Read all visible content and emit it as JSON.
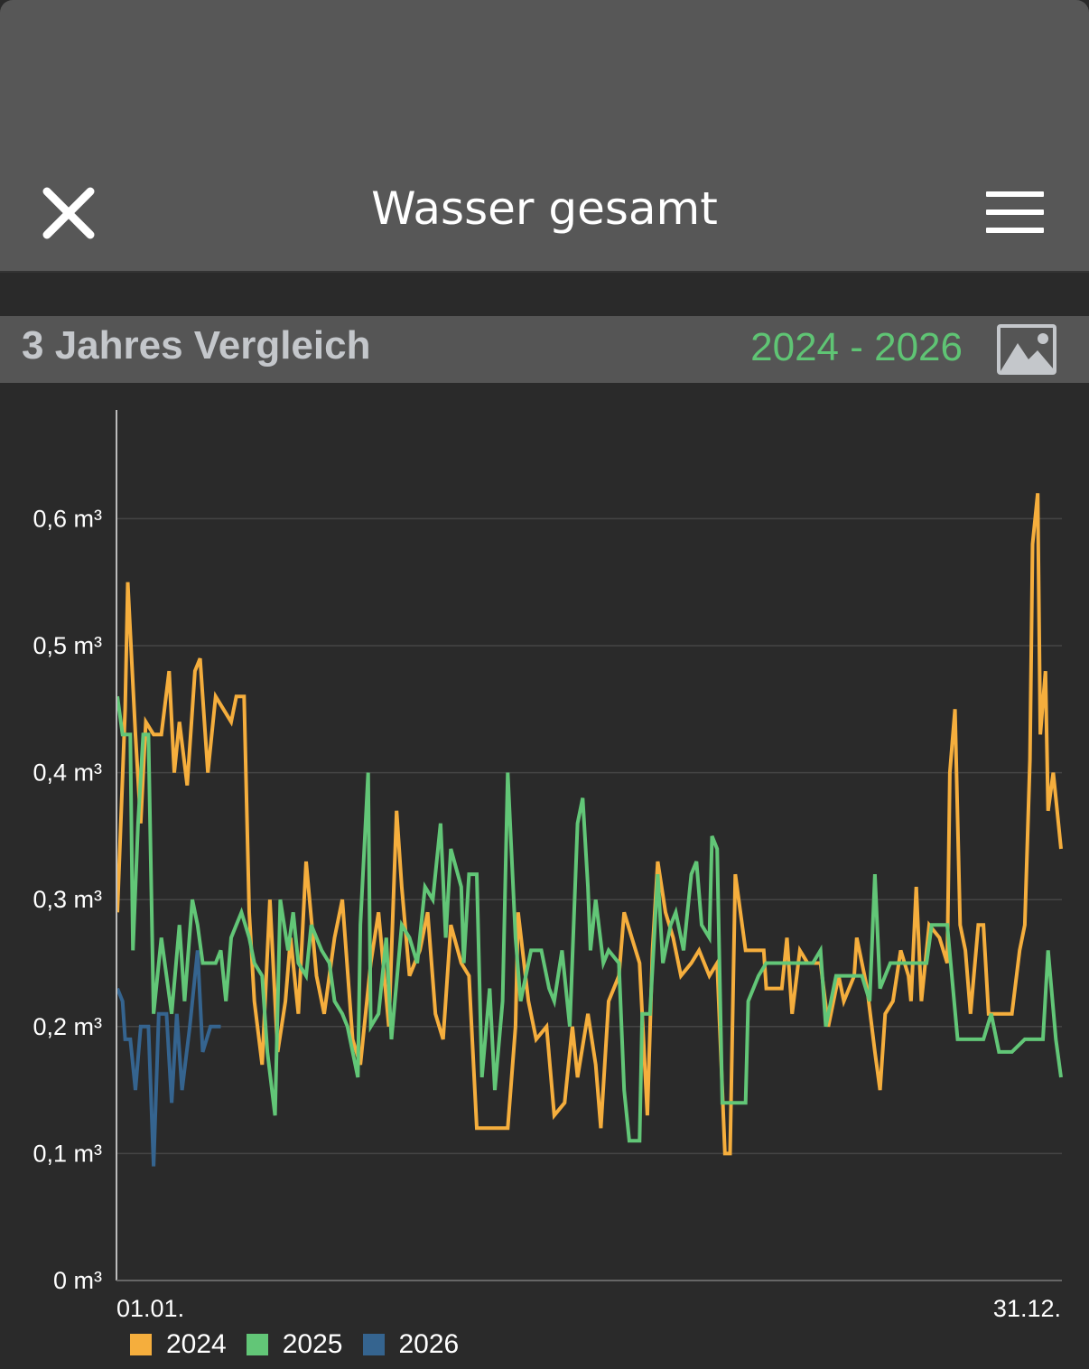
{
  "header": {
    "title": "Wasser gesamt",
    "close_icon": "close-icon",
    "menu_icon": "hamburger-menu-icon"
  },
  "section": {
    "title": "3 Jahres Vergleich",
    "range": "2024 - 2026",
    "image_icon": "image-icon"
  },
  "chart_data": {
    "type": "line",
    "title": "3 Jahres Vergleich",
    "xlabel": "",
    "ylabel": "",
    "x_tick_labels": [
      "01.01.",
      "31.12."
    ],
    "xlim": [
      0,
      365
    ],
    "ylim": [
      0,
      0.686
    ],
    "y_ticks": [
      {
        "v": 0,
        "label": "0 m³"
      },
      {
        "v": 0.1,
        "label": "0,1 m³"
      },
      {
        "v": 0.2,
        "label": "0,2 m³"
      },
      {
        "v": 0.3,
        "label": "0,3 m³"
      },
      {
        "v": 0.4,
        "label": "0,4 m³"
      },
      {
        "v": 0.5,
        "label": "0,5 m³"
      },
      {
        "v": 0.6,
        "label": "0,6 m³"
      }
    ],
    "grid": true,
    "legend_position": "bottom-left",
    "series": [
      {
        "name": "2024",
        "color": "#f5ae3d",
        "points": [
          [
            0,
            0.29
          ],
          [
            3,
            0.45
          ],
          [
            4,
            0.55
          ],
          [
            7,
            0.43
          ],
          [
            9,
            0.36
          ],
          [
            11,
            0.44
          ],
          [
            14,
            0.43
          ],
          [
            17,
            0.43
          ],
          [
            20,
            0.48
          ],
          [
            22,
            0.4
          ],
          [
            24,
            0.44
          ],
          [
            27,
            0.39
          ],
          [
            30,
            0.48
          ],
          [
            32,
            0.49
          ],
          [
            35,
            0.4
          ],
          [
            38,
            0.46
          ],
          [
            41,
            0.45
          ],
          [
            44,
            0.44
          ],
          [
            46,
            0.46
          ],
          [
            49,
            0.46
          ],
          [
            51,
            0.29
          ],
          [
            53,
            0.22
          ],
          [
            56,
            0.17
          ],
          [
            59,
            0.3
          ],
          [
            62,
            0.18
          ],
          [
            65,
            0.22
          ],
          [
            67,
            0.27
          ],
          [
            70,
            0.21
          ],
          [
            73,
            0.33
          ],
          [
            77,
            0.24
          ],
          [
            80,
            0.21
          ],
          [
            84,
            0.27
          ],
          [
            87,
            0.3
          ],
          [
            91,
            0.19
          ],
          [
            94,
            0.17
          ],
          [
            98,
            0.25
          ],
          [
            101,
            0.29
          ],
          [
            105,
            0.2
          ],
          [
            108,
            0.37
          ],
          [
            110,
            0.31
          ],
          [
            113,
            0.24
          ],
          [
            117,
            0.26
          ],
          [
            120,
            0.29
          ],
          [
            123,
            0.21
          ],
          [
            126,
            0.19
          ],
          [
            129,
            0.28
          ],
          [
            133,
            0.25
          ],
          [
            136,
            0.24
          ],
          [
            139,
            0.12
          ],
          [
            145,
            0.12
          ],
          [
            151,
            0.12
          ],
          [
            154,
            0.2
          ],
          [
            155,
            0.29
          ],
          [
            159,
            0.22
          ],
          [
            162,
            0.19
          ],
          [
            166,
            0.2
          ],
          [
            169,
            0.13
          ],
          [
            173,
            0.14
          ],
          [
            176,
            0.2
          ],
          [
            178,
            0.16
          ],
          [
            182,
            0.21
          ],
          [
            185,
            0.17
          ],
          [
            187,
            0.12
          ],
          [
            190,
            0.22
          ],
          [
            194,
            0.24
          ],
          [
            196,
            0.29
          ],
          [
            199,
            0.27
          ],
          [
            202,
            0.25
          ],
          [
            205,
            0.13
          ],
          [
            207,
            0.26
          ],
          [
            209,
            0.33
          ],
          [
            212,
            0.29
          ],
          [
            215,
            0.27
          ],
          [
            218,
            0.24
          ],
          [
            222,
            0.25
          ],
          [
            225,
            0.26
          ],
          [
            229,
            0.24
          ],
          [
            232,
            0.25
          ],
          [
            235,
            0.1
          ],
          [
            237,
            0.1
          ],
          [
            239,
            0.32
          ],
          [
            241,
            0.29
          ],
          [
            243,
            0.26
          ],
          [
            250,
            0.26
          ],
          [
            251,
            0.23
          ],
          [
            257,
            0.23
          ],
          [
            259,
            0.27
          ],
          [
            261,
            0.21
          ],
          [
            264,
            0.26
          ],
          [
            267,
            0.25
          ],
          [
            272,
            0.25
          ],
          [
            275,
            0.2
          ],
          [
            279,
            0.24
          ],
          [
            281,
            0.22
          ],
          [
            285,
            0.24
          ],
          [
            286,
            0.27
          ],
          [
            290,
            0.23
          ],
          [
            293,
            0.18
          ],
          [
            295,
            0.15
          ],
          [
            297,
            0.21
          ],
          [
            300,
            0.22
          ],
          [
            303,
            0.26
          ],
          [
            306,
            0.24
          ],
          [
            307,
            0.22
          ],
          [
            309,
            0.31
          ],
          [
            311,
            0.22
          ],
          [
            314,
            0.28
          ],
          [
            318,
            0.27
          ],
          [
            321,
            0.25
          ],
          [
            322,
            0.4
          ],
          [
            324,
            0.45
          ],
          [
            326,
            0.28
          ],
          [
            328,
            0.26
          ],
          [
            330,
            0.21
          ],
          [
            333,
            0.28
          ],
          [
            335,
            0.28
          ],
          [
            337,
            0.21
          ],
          [
            342,
            0.21
          ],
          [
            346,
            0.21
          ],
          [
            349,
            0.26
          ],
          [
            351,
            0.28
          ],
          [
            353,
            0.41
          ],
          [
            354,
            0.58
          ],
          [
            356,
            0.62
          ],
          [
            357,
            0.43
          ],
          [
            359,
            0.48
          ],
          [
            360,
            0.37
          ],
          [
            362,
            0.4
          ],
          [
            363,
            0.38
          ],
          [
            365,
            0.34
          ]
        ]
      },
      {
        "name": "2025",
        "color": "#62c677",
        "points": [
          [
            0,
            0.46
          ],
          [
            2,
            0.43
          ],
          [
            5,
            0.43
          ],
          [
            6,
            0.26
          ],
          [
            8,
            0.36
          ],
          [
            10,
            0.43
          ],
          [
            12,
            0.43
          ],
          [
            14,
            0.21
          ],
          [
            17,
            0.27
          ],
          [
            19,
            0.24
          ],
          [
            21,
            0.21
          ],
          [
            24,
            0.28
          ],
          [
            26,
            0.22
          ],
          [
            29,
            0.3
          ],
          [
            31,
            0.28
          ],
          [
            33,
            0.25
          ],
          [
            36,
            0.25
          ],
          [
            38,
            0.25
          ],
          [
            40,
            0.26
          ],
          [
            42,
            0.22
          ],
          [
            44,
            0.27
          ],
          [
            46,
            0.28
          ],
          [
            48,
            0.29
          ],
          [
            51,
            0.27
          ],
          [
            53,
            0.25
          ],
          [
            56,
            0.24
          ],
          [
            58,
            0.18
          ],
          [
            61,
            0.13
          ],
          [
            63,
            0.3
          ],
          [
            66,
            0.26
          ],
          [
            68,
            0.29
          ],
          [
            70,
            0.25
          ],
          [
            73,
            0.24
          ],
          [
            75,
            0.28
          ],
          [
            79,
            0.26
          ],
          [
            82,
            0.25
          ],
          [
            84,
            0.22
          ],
          [
            87,
            0.21
          ],
          [
            89,
            0.2
          ],
          [
            93,
            0.16
          ],
          [
            94,
            0.28
          ],
          [
            97,
            0.4
          ],
          [
            98,
            0.2
          ],
          [
            101,
            0.21
          ],
          [
            104,
            0.27
          ],
          [
            106,
            0.19
          ],
          [
            110,
            0.28
          ],
          [
            113,
            0.27
          ],
          [
            116,
            0.25
          ],
          [
            119,
            0.31
          ],
          [
            122,
            0.3
          ],
          [
            125,
            0.36
          ],
          [
            127,
            0.27
          ],
          [
            129,
            0.34
          ],
          [
            133,
            0.31
          ],
          [
            134,
            0.25
          ],
          [
            136,
            0.32
          ],
          [
            139,
            0.32
          ],
          [
            141,
            0.16
          ],
          [
            144,
            0.23
          ],
          [
            146,
            0.15
          ],
          [
            149,
            0.22
          ],
          [
            151,
            0.4
          ],
          [
            154,
            0.27
          ],
          [
            156,
            0.22
          ],
          [
            160,
            0.26
          ],
          [
            164,
            0.26
          ],
          [
            167,
            0.23
          ],
          [
            169,
            0.22
          ],
          [
            172,
            0.26
          ],
          [
            175,
            0.2
          ],
          [
            178,
            0.36
          ],
          [
            180,
            0.38
          ],
          [
            182,
            0.31
          ],
          [
            183,
            0.26
          ],
          [
            185,
            0.3
          ],
          [
            188,
            0.25
          ],
          [
            190,
            0.26
          ],
          [
            194,
            0.25
          ],
          [
            196,
            0.15
          ],
          [
            198,
            0.11
          ],
          [
            202,
            0.11
          ],
          [
            203,
            0.21
          ],
          [
            206,
            0.21
          ],
          [
            209,
            0.32
          ],
          [
            211,
            0.25
          ],
          [
            214,
            0.28
          ],
          [
            216,
            0.29
          ],
          [
            219,
            0.26
          ],
          [
            222,
            0.32
          ],
          [
            224,
            0.33
          ],
          [
            226,
            0.28
          ],
          [
            229,
            0.27
          ],
          [
            230,
            0.35
          ],
          [
            232,
            0.34
          ],
          [
            234,
            0.14
          ],
          [
            243,
            0.14
          ],
          [
            244,
            0.22
          ],
          [
            248,
            0.24
          ],
          [
            251,
            0.25
          ],
          [
            255,
            0.25
          ],
          [
            262,
            0.25
          ],
          [
            269,
            0.25
          ],
          [
            272,
            0.26
          ],
          [
            274,
            0.2
          ],
          [
            278,
            0.24
          ],
          [
            288,
            0.24
          ],
          [
            291,
            0.22
          ],
          [
            293,
            0.32
          ],
          [
            295,
            0.23
          ],
          [
            299,
            0.25
          ],
          [
            313,
            0.25
          ],
          [
            315,
            0.28
          ],
          [
            321,
            0.28
          ],
          [
            325,
            0.19
          ],
          [
            335,
            0.19
          ],
          [
            338,
            0.21
          ],
          [
            341,
            0.18
          ],
          [
            346,
            0.18
          ],
          [
            351,
            0.19
          ],
          [
            358,
            0.19
          ],
          [
            360,
            0.26
          ],
          [
            363,
            0.19
          ],
          [
            365,
            0.16
          ]
        ]
      },
      {
        "name": "2026",
        "color": "#35648f",
        "points": [
          [
            0,
            0.23
          ],
          [
            2,
            0.22
          ],
          [
            3,
            0.19
          ],
          [
            5,
            0.19
          ],
          [
            7,
            0.15
          ],
          [
            9,
            0.2
          ],
          [
            12,
            0.2
          ],
          [
            14,
            0.09
          ],
          [
            16,
            0.21
          ],
          [
            19,
            0.21
          ],
          [
            21,
            0.14
          ],
          [
            23,
            0.21
          ],
          [
            25,
            0.15
          ],
          [
            28,
            0.2
          ],
          [
            31,
            0.26
          ],
          [
            33,
            0.18
          ],
          [
            36,
            0.2
          ],
          [
            40,
            0.2
          ]
        ]
      }
    ]
  }
}
